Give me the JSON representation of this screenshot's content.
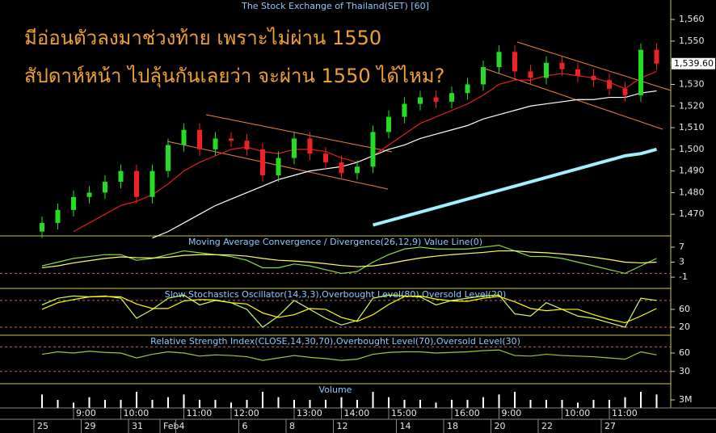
{
  "chart_data": [
    {
      "type": "candlestick",
      "title": "The Stock Exchange of Thailand(SET) [60]",
      "annotations": [
        "มีอ่อนตัวลงมาช่วงท้าย เพราะไม่ผ่าน 1550",
        "สัปดาห์หน้า ไปลุ้นกันเลยว่า จะผ่าน 1550 ได้ไหม?"
      ],
      "last_value_label": "1,539.60",
      "up_color": "#22dd22",
      "down_color": "#ee2222",
      "open": [
        1462,
        1466,
        1472,
        1478,
        1480,
        1485,
        1490,
        1478,
        1490,
        1502,
        1509,
        1500,
        1505,
        1504,
        1500,
        1488,
        1496,
        1505,
        1498,
        1494,
        1489,
        1492,
        1508,
        1515,
        1521,
        1524,
        1522,
        1526,
        1530,
        1538,
        1545,
        1536,
        1533,
        1540,
        1537,
        1534,
        1532,
        1528,
        1525,
        1546
      ],
      "high": [
        1469,
        1475,
        1481,
        1483,
        1488,
        1493,
        1493,
        1493,
        1505,
        1512,
        1512,
        1508,
        1508,
        1507,
        1503,
        1499,
        1508,
        1508,
        1501,
        1497,
        1495,
        1511,
        1518,
        1524,
        1527,
        1527,
        1529,
        1533,
        1541,
        1548,
        1548,
        1539,
        1543,
        1543,
        1540,
        1537,
        1535,
        1531,
        1549,
        1549
      ],
      "low": [
        1459,
        1463,
        1469,
        1475,
        1477,
        1482,
        1475,
        1475,
        1487,
        1499,
        1497,
        1497,
        1501,
        1497,
        1485,
        1485,
        1493,
        1495,
        1491,
        1486,
        1486,
        1489,
        1505,
        1512,
        1518,
        1519,
        1519,
        1523,
        1527,
        1535,
        1533,
        1530,
        1530,
        1534,
        1531,
        1529,
        1525,
        1522,
        1522,
        1536.6
      ],
      "close": [
        1466,
        1472,
        1478,
        1480,
        1485,
        1490,
        1478,
        1490,
        1502,
        1509,
        1500,
        1505,
        1504,
        1500,
        1488,
        1496,
        1505,
        1498,
        1494,
        1489,
        1492,
        1508,
        1515,
        1521,
        1524,
        1522,
        1526,
        1530,
        1538,
        1545,
        1536,
        1533,
        1540,
        1537,
        1534,
        1532,
        1528,
        1525,
        1546,
        1539.6
      ],
      "series": [
        {
          "color": "#e02020",
          "values": [
            null,
            null,
            1462,
            1466,
            1470,
            1474,
            1476,
            1479,
            1484,
            1490,
            1494,
            1497,
            1500,
            1501,
            1499,
            1498,
            1500,
            1500,
            1499,
            1496,
            1494,
            1497,
            1502,
            1507,
            1512,
            1515,
            1518,
            1521,
            1525,
            1530,
            1532,
            1532,
            1534,
            1535,
            1534,
            1533,
            1531,
            1528,
            1533,
            1536
          ]
        },
        {
          "color": "#ffffff",
          "values": [
            null,
            null,
            null,
            null,
            null,
            null,
            null,
            1459,
            1462,
            1466,
            1470,
            1474,
            1477,
            1480,
            1483,
            1486,
            1488,
            1490,
            1491,
            1492,
            1494,
            1497,
            1500,
            1502,
            1505,
            1507,
            1509,
            1511,
            1514,
            1516,
            1518,
            1520,
            1521,
            1522,
            1523,
            1523,
            1524,
            1524,
            1526,
            1527
          ]
        },
        {
          "color": "#a0f0ff",
          "values": [
            null,
            null,
            null,
            null,
            null,
            null,
            null,
            null,
            null,
            null,
            null,
            null,
            null,
            null,
            null,
            null,
            null,
            null,
            null,
            null,
            null,
            1465,
            1467,
            1469,
            1471,
            1473,
            1475,
            1477,
            1479,
            1481,
            1483,
            1485,
            1487,
            1489,
            1491,
            1493,
            1495,
            1497,
            1498,
            1500
          ]
        }
      ],
      "ylim": [
        1460,
        1569
      ],
      "yticks": [
        {
          "value": 1470,
          "label": "1,470"
        },
        {
          "value": 1480,
          "label": "1,480"
        },
        {
          "value": 1490,
          "label": "1,490"
        },
        {
          "value": 1500,
          "label": "1,500"
        },
        {
          "value": 1510,
          "label": "1,510"
        },
        {
          "value": 1520,
          "label": "1,520"
        },
        {
          "value": 1530,
          "label": "1,530"
        },
        {
          "value": 1540,
          "label": "1,540"
        },
        {
          "value": 1550,
          "label": "1,550"
        },
        {
          "value": 1560,
          "label": "1,560"
        }
      ]
    },
    {
      "type": "line",
      "title": "Moving Average Convergence / Divergence(26,12,9) Value Line(0)",
      "series": [
        {
          "color": "#88dd44",
          "values": [
            2,
            3,
            4,
            4.5,
            5,
            5,
            3.5,
            4,
            5,
            6,
            5.5,
            5,
            4.5,
            3.5,
            1.5,
            1.5,
            2.5,
            2,
            1,
            0,
            0.5,
            3,
            5,
            6.5,
            7,
            6.5,
            6.5,
            6.5,
            7,
            7.5,
            6,
            4.5,
            4.5,
            4,
            3,
            2,
            1,
            0,
            2,
            4
          ]
        },
        {
          "color": "#ffff66",
          "values": [
            1.5,
            2,
            2.8,
            3.4,
            4,
            4.4,
            4.2,
            4.1,
            4.3,
            4.8,
            5,
            5,
            4.9,
            4.6,
            4,
            3.5,
            3.3,
            3,
            2.6,
            2.1,
            1.8,
            2,
            2.6,
            3.4,
            4.1,
            4.6,
            5,
            5.3,
            5.6,
            6,
            6,
            5.7,
            5.5,
            5.2,
            4.8,
            4.3,
            3.7,
            3,
            2.8,
            3
          ]
        }
      ],
      "levels": [
        0
      ],
      "ylim": [
        -4,
        10
      ],
      "yticks": [
        7,
        3,
        -1
      ]
    },
    {
      "type": "line",
      "title": "Slow Stochastics Oscillator(14,3,3),Overbought Level(80),Oversold Level(20)",
      "series": [
        {
          "color": "#ccff66",
          "values": [
            70,
            85,
            90,
            88,
            90,
            85,
            40,
            60,
            85,
            92,
            70,
            80,
            75,
            60,
            20,
            45,
            80,
            60,
            40,
            25,
            35,
            85,
            92,
            90,
            88,
            70,
            80,
            85,
            90,
            92,
            50,
            45,
            75,
            60,
            45,
            40,
            30,
            20,
            85,
            80
          ]
        },
        {
          "color": "#ffff00",
          "values": [
            60,
            75,
            82,
            88,
            89,
            88,
            72,
            62,
            62,
            79,
            82,
            81,
            75,
            72,
            52,
            42,
            48,
            62,
            60,
            42,
            33,
            48,
            71,
            89,
            90,
            83,
            79,
            78,
            85,
            89,
            77,
            62,
            57,
            60,
            60,
            48,
            38,
            30,
            45,
            62
          ]
        }
      ],
      "levels": [
        80,
        20
      ],
      "ylim": [
        2,
        107
      ],
      "yticks": [
        60,
        20
      ]
    },
    {
      "type": "line",
      "title": "Relative Strength Index(CLOSE,14,30,70),Overbought Level(70),Oversold Level(30)",
      "series": [
        {
          "color": "#99cc33",
          "values": [
            58,
            62,
            60,
            63,
            61,
            60,
            52,
            58,
            62,
            60,
            55,
            57,
            56,
            54,
            48,
            52,
            56,
            53,
            51,
            48,
            50,
            58,
            61,
            62,
            62,
            60,
            61,
            62,
            64,
            65,
            56,
            55,
            58,
            56,
            55,
            54,
            52,
            50,
            62,
            57
          ]
        }
      ],
      "levels": [
        70,
        30
      ],
      "ylim": [
        10,
        89
      ],
      "yticks": [
        60,
        30
      ]
    },
    {
      "type": "bar",
      "title": "Volume",
      "color": "#ffffff",
      "values": [
        5000000,
        3000000,
        2000000,
        4000000,
        3000000,
        3000000,
        6000000,
        3000000,
        4000000,
        5000000,
        3000000,
        3000000,
        2000000,
        3000000,
        6000000,
        4000000,
        3000000,
        3000000,
        3000000,
        4000000,
        3000000,
        6000000,
        4000000,
        3000000,
        3000000,
        2000000,
        3000000,
        3000000,
        4000000,
        5000000,
        6000000,
        3000000,
        3000000,
        3000000,
        2000000,
        3000000,
        3000000,
        4000000,
        6000000,
        5000000
      ],
      "ylim": [
        0,
        9000000
      ],
      "yticks": [
        {
          "value": 3000000,
          "label": "3M"
        }
      ],
      "categories": [
        null,
        null,
        "9:00",
        null,
        null,
        "10:00",
        null,
        null,
        null,
        "11:00",
        null,
        null,
        "12:00",
        null,
        null,
        null,
        "13:00",
        null,
        null,
        "14:00",
        null,
        null,
        "15:00",
        null,
        null,
        null,
        "16:00",
        null,
        null,
        "9:00",
        null,
        null,
        null,
        "10:00",
        null,
        null,
        "11:00",
        null,
        null,
        null
      ],
      "dates": [
        "25",
        null,
        null,
        "29",
        null,
        null,
        "31",
        null,
        "Feb",
        "4",
        null,
        null,
        null,
        "6",
        null,
        null,
        "8",
        null,
        null,
        "12",
        null,
        null,
        null,
        "14",
        null,
        null,
        "18",
        null,
        null,
        "20",
        null,
        null,
        "22",
        null,
        null,
        null,
        "27",
        null,
        null,
        null
      ]
    }
  ]
}
